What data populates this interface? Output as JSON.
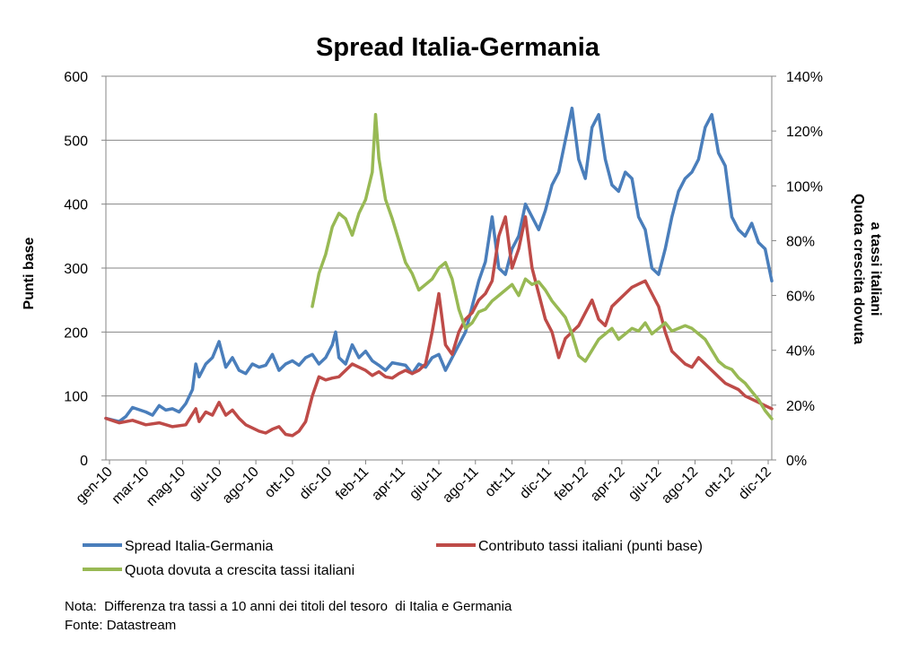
{
  "chart_data": {
    "type": "line",
    "title": "Spread Italia-Germania",
    "ylabel": "Punti base",
    "y2label_line1": "Quota crescita dovuta",
    "y2label_line2": "a tassi italiani",
    "ylim": [
      0,
      600
    ],
    "y2lim": [
      0,
      140
    ],
    "yticks": [
      "0",
      "100",
      "200",
      "300",
      "400",
      "500",
      "600"
    ],
    "y2ticks": [
      "0%",
      "20%",
      "40%",
      "60%",
      "80%",
      "100%",
      "120%",
      "140%"
    ],
    "categories": [
      "gen-10",
      "mar-10",
      "mag-10",
      "giu-10",
      "ago-10",
      "ott-10",
      "dic-10",
      "feb-11",
      "apr-11",
      "giu-11",
      "ago-11",
      "ott-11",
      "dic-11",
      "feb-12",
      "apr-12",
      "giu-12",
      "ago-12",
      "ott-12",
      "dic-12"
    ],
    "grid": true,
    "legend_position": "bottom",
    "colors": {
      "spread": "#4a7ebb",
      "contributo": "#be4b48",
      "quota": "#98b954"
    },
    "series": [
      {
        "name": "Spread Italia-Germania",
        "axis": "left",
        "x": [
          0,
          2,
          3,
          4,
          6,
          7,
          8,
          9,
          10,
          11,
          12,
          13,
          13.5,
          14,
          15,
          16,
          17,
          18,
          19,
          20,
          21,
          22,
          23,
          24,
          25,
          26,
          27,
          28,
          29,
          30,
          31,
          32,
          33,
          34,
          34.5,
          35,
          36,
          37,
          38,
          39,
          40,
          41,
          42,
          43,
          44,
          45,
          46,
          47,
          48,
          49,
          50,
          51,
          52,
          53,
          54,
          55,
          56,
          57,
          58,
          59,
          60,
          61,
          62,
          63,
          64,
          65,
          66,
          67,
          68,
          69,
          70,
          71,
          72,
          73,
          74,
          75,
          76,
          77,
          78,
          79,
          80,
          81,
          82,
          83,
          84,
          85,
          86,
          87,
          88,
          89,
          90,
          91,
          92,
          93,
          94,
          95,
          96,
          97,
          98,
          99,
          100
        ],
        "values": [
          65,
          60,
          68,
          82,
          75,
          70,
          85,
          78,
          80,
          75,
          88,
          110,
          150,
          130,
          150,
          160,
          185,
          145,
          160,
          140,
          135,
          150,
          145,
          148,
          165,
          140,
          150,
          155,
          148,
          160,
          165,
          150,
          160,
          180,
          200,
          160,
          150,
          180,
          160,
          170,
          155,
          148,
          140,
          152,
          150,
          148,
          135,
          150,
          145,
          160,
          165,
          140,
          160,
          180,
          200,
          240,
          280,
          310,
          380,
          300,
          290,
          330,
          350,
          400,
          380,
          360,
          390,
          430,
          450,
          500,
          550,
          470,
          440,
          520,
          540,
          470,
          430,
          420,
          450,
          440,
          380,
          360,
          300,
          290,
          330,
          380,
          420,
          440,
          450,
          470,
          520,
          540,
          480,
          460,
          380,
          360,
          350,
          370,
          340,
          330,
          280
        ]
      },
      {
        "name": "Contributo tassi italiani (punti base)",
        "axis": "left",
        "x": [
          0,
          2,
          4,
          6,
          8,
          10,
          12,
          13.5,
          14,
          15,
          16,
          17,
          18,
          19,
          20,
          21,
          22,
          23,
          24,
          25,
          26,
          27,
          28,
          29,
          30,
          31,
          32,
          33,
          34,
          35,
          36,
          37,
          38,
          39,
          40,
          41,
          42,
          43,
          44,
          45,
          46,
          47,
          48,
          49,
          50,
          51,
          52,
          53,
          54,
          55,
          56,
          57,
          58,
          59,
          60,
          61,
          62,
          63,
          64,
          65,
          66,
          67,
          68,
          69,
          70,
          71,
          72,
          73,
          74,
          75,
          76,
          77,
          78,
          79,
          80,
          81,
          82,
          83,
          84,
          85,
          86,
          87,
          88,
          89,
          90,
          91,
          92,
          93,
          94,
          95,
          96,
          97,
          98,
          99,
          100
        ],
        "values": [
          65,
          58,
          62,
          55,
          58,
          52,
          55,
          80,
          60,
          75,
          70,
          90,
          70,
          78,
          65,
          55,
          50,
          45,
          42,
          48,
          52,
          40,
          38,
          45,
          60,
          100,
          130,
          125,
          128,
          130,
          140,
          150,
          145,
          140,
          132,
          138,
          130,
          128,
          135,
          140,
          135,
          140,
          150,
          200,
          260,
          180,
          165,
          200,
          220,
          230,
          250,
          260,
          280,
          350,
          380,
          300,
          330,
          380,
          300,
          260,
          220,
          200,
          160,
          190,
          200,
          210,
          230,
          250,
          220,
          210,
          240,
          250,
          260,
          270,
          275,
          280,
          260,
          240,
          200,
          170,
          160,
          150,
          145,
          160,
          150,
          140,
          130,
          120,
          115,
          110,
          100,
          95,
          90,
          85,
          80
        ]
      },
      {
        "name": "Quota dovuta a crescita tassi italiani",
        "axis": "right",
        "x": [
          31,
          32,
          33,
          34,
          35,
          36,
          37,
          38,
          39,
          40,
          40.5,
          41,
          42,
          43,
          44,
          45,
          46,
          47,
          48,
          49,
          50,
          51,
          52,
          53,
          54,
          55,
          56,
          57,
          58,
          59,
          60,
          61,
          62,
          63,
          64,
          65,
          66,
          67,
          68,
          69,
          70,
          71,
          72,
          73,
          74,
          75,
          76,
          77,
          78,
          79,
          80,
          81,
          82,
          83,
          84,
          85,
          86,
          87,
          88,
          89,
          90,
          91,
          92,
          93,
          94,
          95,
          96,
          97,
          98,
          99,
          100
        ],
        "values": [
          56,
          68,
          75,
          85,
          90,
          88,
          82,
          90,
          95,
          105,
          126,
          110,
          95,
          88,
          80,
          72,
          68,
          62,
          64,
          66,
          70,
          72,
          66,
          55,
          48,
          50,
          54,
          55,
          58,
          60,
          62,
          64,
          60,
          66,
          64,
          65,
          62,
          58,
          55,
          52,
          46,
          38,
          36,
          40,
          44,
          46,
          48,
          44,
          46,
          48,
          47,
          50,
          46,
          48,
          50,
          47,
          48,
          49,
          48,
          46,
          44,
          40,
          36,
          34,
          33,
          30,
          28,
          25,
          22,
          18,
          15
        ]
      }
    ],
    "legend_labels": [
      "Spread Italia-Germania",
      "Contributo tassi italiani (punti base)",
      "Quota dovuta a crescita tassi italiani"
    ]
  },
  "notes": {
    "nota": "Nota:  Differenza tra tassi a 10 anni dei titoli del tesoro  di Italia e Germania",
    "fonte": "Fonte: Datastream"
  }
}
